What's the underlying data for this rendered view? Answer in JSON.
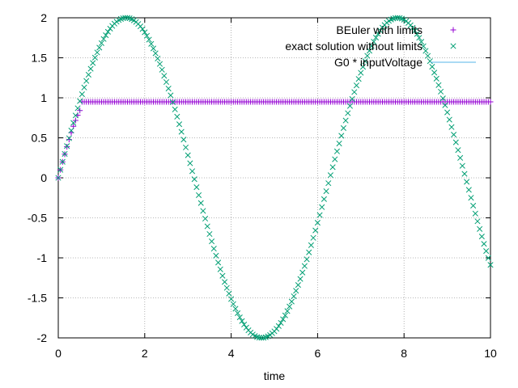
{
  "chart_data": {
    "type": "scatter",
    "xlabel": "time",
    "ylabel": "",
    "xlim": [
      0,
      10
    ],
    "ylim": [
      -2,
      2
    ],
    "xticks": [
      "0",
      "2",
      "4",
      "6",
      "8",
      "10"
    ],
    "yticks": [
      "-2",
      "-1.5",
      "-1",
      "-0.5",
      "0",
      "0.5",
      "1",
      "1.5",
      "2"
    ],
    "grid": true,
    "legend_position": "top-right",
    "series": [
      {
        "name": "BEuler with limits",
        "marker": "plus",
        "color": "#9400d3",
        "x": [
          0.0,
          0.05,
          0.1,
          0.15,
          0.2,
          0.25,
          0.3,
          0.35,
          0.4,
          0.45,
          0.5,
          0.55,
          0.6,
          0.65,
          0.7,
          0.75,
          0.8,
          0.85,
          0.9,
          0.95,
          1.0,
          1.05,
          1.1,
          1.15,
          1.2,
          1.25,
          1.3,
          1.35,
          1.4,
          1.45,
          1.5,
          1.55,
          1.6,
          1.65,
          1.7,
          1.75,
          1.8,
          1.85,
          1.9,
          1.95,
          2.0,
          2.05,
          2.1,
          2.15,
          2.2,
          2.25,
          2.3,
          2.35,
          2.4,
          2.45,
          2.5,
          2.55,
          2.6,
          2.65,
          2.7,
          2.75,
          2.8,
          2.85,
          2.9,
          2.95,
          3.0,
          3.05,
          3.1,
          3.15,
          3.2,
          3.25,
          3.3,
          3.35,
          3.4,
          3.45,
          3.5,
          3.55,
          3.6,
          3.65,
          3.7,
          3.75,
          3.8,
          3.85,
          3.9,
          3.95,
          4.0,
          4.05,
          4.1,
          4.15,
          4.2,
          4.25,
          4.3,
          4.35,
          4.4,
          4.45,
          4.5,
          4.55,
          4.6,
          4.65,
          4.7,
          4.75,
          4.8,
          4.85,
          4.9,
          4.95,
          5.0,
          5.05,
          5.1,
          5.15,
          5.2,
          5.25,
          5.3,
          5.35,
          5.4,
          5.45,
          5.5,
          5.55,
          5.6,
          5.65,
          5.7,
          5.75,
          5.8,
          5.85,
          5.9,
          5.95,
          6.0,
          6.05,
          6.1,
          6.15,
          6.2,
          6.25,
          6.3,
          6.35,
          6.4,
          6.45,
          6.5,
          6.55,
          6.6,
          6.65,
          6.7,
          6.75,
          6.8,
          6.85,
          6.9,
          6.95,
          7.0,
          7.05,
          7.1,
          7.15,
          7.2,
          7.25,
          7.3,
          7.35,
          7.4,
          7.45,
          7.5,
          7.55,
          7.6,
          7.65,
          7.7,
          7.75,
          7.8,
          7.85,
          7.9,
          7.95,
          8.0,
          8.05,
          8.1,
          8.15,
          8.2,
          8.25,
          8.3,
          8.35,
          8.4,
          8.45,
          8.5,
          8.55,
          8.6,
          8.65,
          8.7,
          8.75,
          8.8,
          8.85,
          8.9,
          8.95,
          9.0,
          9.05,
          9.1,
          9.15,
          9.2,
          9.25,
          9.3,
          9.35,
          9.4,
          9.45,
          9.5,
          9.55,
          9.6,
          9.65,
          9.7,
          9.75,
          9.8,
          9.85,
          9.9,
          9.95,
          10.0
        ],
        "y": [
          0.0,
          0.1,
          0.199,
          0.296,
          0.389,
          0.479,
          0.565,
          0.644,
          0.717,
          0.783,
          0.841,
          0.95,
          0.95,
          0.95,
          0.95,
          0.95,
          0.95,
          0.95,
          0.95,
          0.95,
          0.95,
          0.95,
          0.95,
          0.95,
          0.95,
          0.95,
          0.95,
          0.95,
          0.95,
          0.95,
          0.95,
          0.95,
          0.95,
          0.95,
          0.95,
          0.95,
          0.95,
          0.95,
          0.95,
          0.95,
          0.95,
          0.95,
          0.95,
          0.95,
          0.95,
          0.95,
          0.95,
          0.95,
          0.95,
          0.95,
          0.95,
          0.95,
          0.95,
          0.95,
          0.95,
          0.95,
          0.95,
          0.95,
          0.95,
          0.95,
          0.95,
          0.95,
          0.95,
          0.95,
          0.95,
          0.95,
          0.95,
          0.95,
          0.95,
          0.95,
          0.95,
          0.95,
          0.95,
          0.95,
          0.95,
          0.95,
          0.95,
          0.95,
          0.95,
          0.95,
          0.95,
          0.95,
          0.95,
          0.95,
          0.95,
          0.95,
          0.95,
          0.95,
          0.95,
          0.95,
          0.95,
          0.95,
          0.95,
          0.95,
          0.95,
          0.95,
          0.95,
          0.95,
          0.95,
          0.95,
          0.95,
          0.95,
          0.95,
          0.95,
          0.95,
          0.95,
          0.95,
          0.95,
          0.95,
          0.95,
          0.95,
          0.95,
          0.95,
          0.95,
          0.95,
          0.95,
          0.95,
          0.95,
          0.95,
          0.95,
          0.95,
          0.95,
          0.95,
          0.95,
          0.95,
          0.95,
          0.95,
          0.95,
          0.95,
          0.95,
          0.95,
          0.95,
          0.95,
          0.95,
          0.95,
          0.95,
          0.95,
          0.95,
          0.95,
          0.95,
          0.95,
          0.95,
          0.95,
          0.95,
          0.95,
          0.95,
          0.95,
          0.95,
          0.95,
          0.95,
          0.95,
          0.95,
          0.95,
          0.95,
          0.95,
          0.95,
          0.95,
          0.95,
          0.95,
          0.95,
          0.95,
          0.95,
          0.95,
          0.95,
          0.95,
          0.95,
          0.95,
          0.95,
          0.95,
          0.95,
          0.95,
          0.95,
          0.95,
          0.95,
          0.95,
          0.95,
          0.95,
          0.95,
          0.95,
          0.95,
          0.95,
          0.95,
          0.95,
          0.95,
          0.95,
          0.95,
          0.95,
          0.95,
          0.95,
          0.95,
          0.95,
          0.95,
          0.95,
          0.95,
          0.95,
          0.95,
          0.95,
          0.95,
          0.95,
          0.95,
          0.95
        ]
      },
      {
        "name": "exact solution without limits",
        "marker": "cross",
        "color": "#009e73",
        "x": [
          0.0,
          0.05,
          0.1,
          0.15,
          0.2,
          0.25,
          0.3,
          0.35,
          0.4,
          0.45,
          0.5,
          0.55,
          0.6,
          0.65,
          0.7,
          0.75,
          0.8,
          0.85,
          0.9,
          0.95,
          1.0,
          1.05,
          1.1,
          1.15,
          1.2,
          1.25,
          1.3,
          1.35,
          1.4,
          1.45,
          1.5,
          1.55,
          1.6,
          1.65,
          1.7,
          1.75,
          1.8,
          1.85,
          1.9,
          1.95,
          2.0,
          2.05,
          2.1,
          2.15,
          2.2,
          2.25,
          2.3,
          2.35,
          2.4,
          2.45,
          2.5,
          2.55,
          2.6,
          2.65,
          2.7,
          2.75,
          2.8,
          2.85,
          2.9,
          2.95,
          3.0,
          3.05,
          3.1,
          3.15,
          3.2,
          3.25,
          3.3,
          3.35,
          3.4,
          3.45,
          3.5,
          3.55,
          3.6,
          3.65,
          3.7,
          3.75,
          3.8,
          3.85,
          3.9,
          3.95,
          4.0,
          4.05,
          4.1,
          4.15,
          4.2,
          4.25,
          4.3,
          4.35,
          4.4,
          4.45,
          4.5,
          4.55,
          4.6,
          4.65,
          4.7,
          4.75,
          4.8,
          4.85,
          4.9,
          4.95,
          5.0,
          5.05,
          5.1,
          5.15,
          5.2,
          5.25,
          5.3,
          5.35,
          5.4,
          5.45,
          5.5,
          5.55,
          5.6,
          5.65,
          5.7,
          5.75,
          5.8,
          5.85,
          5.9,
          5.95,
          6.0,
          6.05,
          6.1,
          6.15,
          6.2,
          6.25,
          6.3,
          6.35,
          6.4,
          6.45,
          6.5,
          6.55,
          6.6,
          6.65,
          6.7,
          6.75,
          6.8,
          6.85,
          6.9,
          6.95,
          7.0,
          7.05,
          7.1,
          7.15,
          7.2,
          7.25,
          7.3,
          7.35,
          7.4,
          7.45,
          7.5,
          7.55,
          7.6,
          7.65,
          7.7,
          7.75,
          7.8,
          7.85,
          7.9,
          7.95,
          8.0,
          8.05,
          8.1,
          8.15,
          8.2,
          8.25,
          8.3,
          8.35,
          8.4,
          8.45,
          8.5,
          8.55,
          8.6,
          8.65,
          8.7,
          8.75,
          8.8,
          8.85,
          8.9,
          8.95,
          9.0,
          9.05,
          9.1,
          9.15,
          9.2,
          9.25,
          9.3,
          9.35,
          9.4,
          9.45,
          9.5,
          9.55,
          9.6,
          9.65,
          9.7,
          9.75,
          9.8,
          9.85,
          9.9,
          9.95,
          10.0
        ],
        "y": [
          0.0,
          0.1,
          0.2,
          0.299,
          0.397,
          0.495,
          0.591,
          0.686,
          0.779,
          0.87,
          0.959,
          1.045,
          1.129,
          1.211,
          1.289,
          1.363,
          1.435,
          1.502,
          1.567,
          1.627,
          1.683,
          1.735,
          1.782,
          1.825,
          1.864,
          1.898,
          1.927,
          1.951,
          1.971,
          1.985,
          1.995,
          2.0,
          1.999,
          1.994,
          1.983,
          1.968,
          1.948,
          1.923,
          1.893,
          1.859,
          1.819,
          1.775,
          1.727,
          1.674,
          1.617,
          1.556,
          1.491,
          1.423,
          1.351,
          1.275,
          1.197,
          1.116,
          1.031,
          0.945,
          0.855,
          0.764,
          0.67,
          0.575,
          0.478,
          0.38,
          0.282,
          0.182,
          0.083,
          -0.017,
          -0.117,
          -0.216,
          -0.315,
          -0.413,
          -0.51,
          -0.606,
          -0.702,
          -0.794,
          -0.885,
          -0.973,
          -1.059,
          -1.143,
          -1.224,
          -1.301,
          -1.375,
          -1.446,
          -1.514,
          -1.577,
          -1.636,
          -1.691,
          -1.743,
          -1.79,
          -1.833,
          -1.871,
          -1.905,
          -1.934,
          -1.957,
          -1.976,
          -1.989,
          -1.997,
          -2.0,
          -1.999,
          -1.992,
          -1.98,
          -1.964,
          -1.942,
          -1.918,
          -1.887,
          -1.852,
          -1.812,
          -1.767,
          -1.719,
          -1.665,
          -1.608,
          -1.546,
          -1.48,
          -1.411,
          -1.339,
          -1.263,
          -1.184,
          -1.102,
          -1.018,
          -0.931,
          -0.842,
          -0.75,
          -0.657,
          -0.561,
          -0.465,
          -0.366,
          -0.266,
          -0.167,
          -0.067,
          0.033,
          0.133,
          0.232,
          0.331,
          0.429,
          0.526,
          0.622,
          0.716,
          0.808,
          0.898,
          0.986,
          1.072,
          1.155,
          1.236,
          1.313,
          1.387,
          1.458,
          1.525,
          1.588,
          1.647,
          1.701,
          1.752,
          1.798,
          1.84,
          1.877,
          1.91,
          1.939,
          1.961,
          1.978,
          1.99,
          1.997,
          2.0,
          1.997,
          1.989,
          1.976,
          1.958,
          1.935,
          1.907,
          1.875,
          1.838,
          1.797,
          1.75,
          1.7,
          1.645,
          1.587,
          1.524,
          1.458,
          1.388,
          1.315,
          1.239,
          1.159,
          1.077,
          0.993,
          0.907,
          0.818,
          0.727,
          0.634,
          0.54,
          0.444,
          0.347,
          0.249,
          0.15,
          0.05,
          -0.05,
          -0.15,
          -0.249,
          -0.348,
          -0.446,
          -0.543,
          -0.639,
          -0.733,
          -0.825,
          -0.915,
          -1.002,
          -1.088
        ]
      },
      {
        "name": "G0 * inputVoltage",
        "marker": "line",
        "color": "#56b4e9",
        "x": [],
        "y": []
      }
    ]
  }
}
